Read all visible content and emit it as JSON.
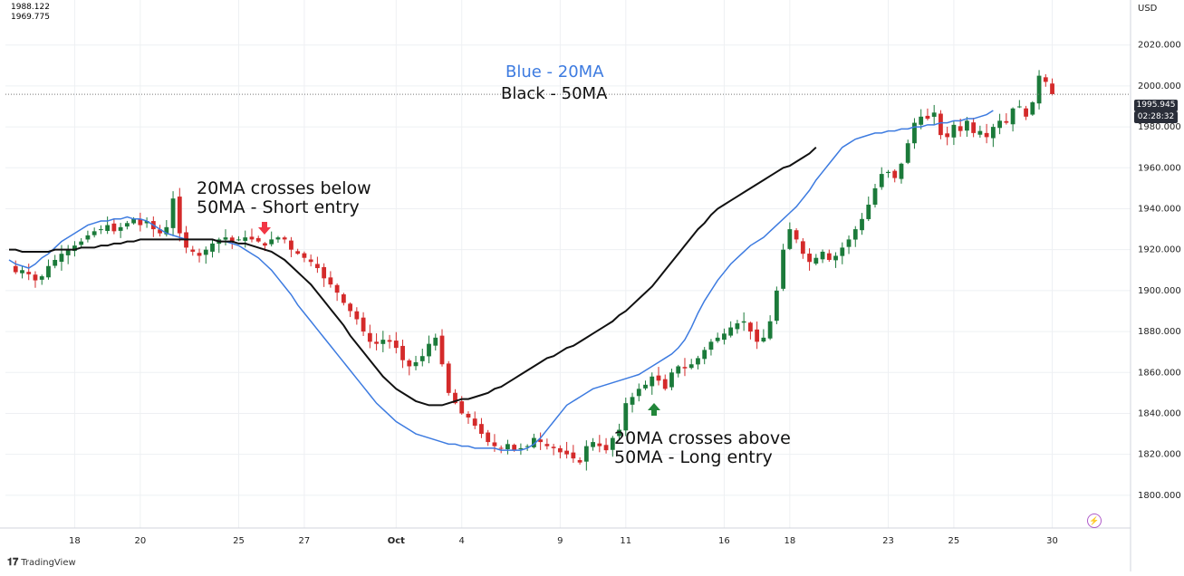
{
  "legend": {
    "value_a": "1988.122",
    "value_b": "1969.775"
  },
  "currency": "USD",
  "price_tag": {
    "price": "1995.945",
    "countdown": "02:28:32"
  },
  "watermark": "TradingView",
  "ma_labels": {
    "blue": "Blue - 20MA",
    "black": "Black - 50MA"
  },
  "annotations": {
    "short": "20MA crosses below\n50MA - Short entry",
    "long": "20MA crosses above\n50MA - Long entry"
  },
  "colors": {
    "up": "#1b7a3a",
    "down": "#d42a2a",
    "ma20": "#3d7be0",
    "ma50": "#111111",
    "grid": "#eef0f3",
    "short_arrow": "#f23645",
    "long_arrow": "#22863a",
    "price_tag_bg": "#2a2e39",
    "ma20_label": "#3d7be0"
  },
  "icons": {
    "short_marker": "arrow-down-icon",
    "long_marker": "arrow-up-icon",
    "alert": "lightning-icon"
  },
  "chart_data": {
    "type": "candlestick",
    "y_axis": {
      "ticks": [
        1800,
        1820,
        1840,
        1860,
        1880,
        1900,
        1920,
        1940,
        1960,
        1980,
        2000,
        2020
      ],
      "ylim": [
        1784,
        2042
      ],
      "currency": "USD"
    },
    "x_axis": {
      "tick_labels": [
        {
          "label": "18",
          "idx": 10
        },
        {
          "label": "20",
          "idx": 20
        },
        {
          "label": "25",
          "idx": 35
        },
        {
          "label": "27",
          "idx": 45
        },
        {
          "label": "Oct",
          "idx": 59
        },
        {
          "label": "4",
          "idx": 69
        },
        {
          "label": "9",
          "idx": 84
        },
        {
          "label": "11",
          "idx": 94
        },
        {
          "label": "16",
          "idx": 109
        },
        {
          "label": "18",
          "idx": 119
        },
        {
          "label": "23",
          "idx": 134
        },
        {
          "label": "25",
          "idx": 144
        },
        {
          "label": "30",
          "idx": 159
        }
      ]
    },
    "series": [
      {
        "name": "Blue - 20MA",
        "color": "#3d7be0",
        "values": [
          1915,
          1913,
          1912,
          1911,
          1913,
          1916,
          1918,
          1921,
          1924,
          1926,
          1928,
          1930,
          1932,
          1933,
          1934,
          1934,
          1935,
          1935,
          1936,
          1935,
          1935,
          1934,
          1932,
          1930,
          1928,
          1927,
          1926,
          1925,
          1925,
          1925,
          1925,
          1925,
          1924,
          1924,
          1923,
          1922,
          1920,
          1918,
          1916,
          1913,
          1910,
          1906,
          1902,
          1898,
          1893,
          1889,
          1885,
          1881,
          1877,
          1873,
          1869,
          1865,
          1861,
          1857,
          1853,
          1849,
          1845,
          1842,
          1839,
          1836,
          1834,
          1832,
          1830,
          1829,
          1828,
          1827,
          1826,
          1825,
          1825,
          1824,
          1824,
          1823,
          1823,
          1823,
          1823,
          1822,
          1822,
          1822,
          1822,
          1823,
          1825,
          1828,
          1832,
          1836,
          1840,
          1844,
          1846,
          1848,
          1850,
          1852,
          1853,
          1854,
          1855,
          1856,
          1857,
          1858,
          1859,
          1861,
          1863,
          1865,
          1867,
          1869,
          1872,
          1876,
          1882,
          1889,
          1895,
          1900,
          1905,
          1909,
          1913,
          1916,
          1919,
          1922,
          1924,
          1926,
          1929,
          1932,
          1935,
          1938,
          1941,
          1945,
          1949,
          1954,
          1958,
          1962,
          1966,
          1970,
          1972,
          1974,
          1975,
          1976,
          1977,
          1977,
          1978,
          1978,
          1979,
          1979,
          1980,
          1980,
          1981,
          1981,
          1982,
          1982,
          1983,
          1983,
          1984,
          1984,
          1985,
          1986,
          1988
        ]
      },
      {
        "name": "Black - 50MA",
        "color": "#111111",
        "values": [
          1920,
          1920,
          1919,
          1919,
          1919,
          1919,
          1919,
          1920,
          1920,
          1920,
          1920,
          1921,
          1921,
          1921,
          1922,
          1922,
          1923,
          1923,
          1924,
          1924,
          1925,
          1925,
          1925,
          1925,
          1925,
          1925,
          1925,
          1925,
          1925,
          1925,
          1925,
          1925,
          1924,
          1924,
          1924,
          1923,
          1923,
          1922,
          1921,
          1920,
          1919,
          1917,
          1915,
          1912,
          1909,
          1906,
          1903,
          1899,
          1895,
          1891,
          1887,
          1883,
          1878,
          1874,
          1870,
          1866,
          1862,
          1858,
          1855,
          1852,
          1850,
          1848,
          1846,
          1845,
          1844,
          1844,
          1844,
          1845,
          1846,
          1847,
          1847,
          1848,
          1849,
          1850,
          1852,
          1853,
          1855,
          1857,
          1859,
          1861,
          1863,
          1865,
          1867,
          1868,
          1870,
          1872,
          1873,
          1875,
          1877,
          1879,
          1881,
          1883,
          1885,
          1888,
          1890,
          1893,
          1896,
          1899,
          1902,
          1906,
          1910,
          1914,
          1918,
          1922,
          1926,
          1930,
          1933,
          1937,
          1940,
          1942,
          1944,
          1946,
          1948,
          1950,
          1952,
          1954,
          1956,
          1958,
          1960,
          1961,
          1963,
          1965,
          1967,
          1970
        ]
      }
    ],
    "ohlc": [],
    "note": "Candles generated from close path below",
    "close_path": [
      1912,
      1909,
      1910,
      1908,
      1905,
      1907,
      1912,
      1915,
      1918,
      1920,
      1922,
      1924,
      1927,
      1929,
      1930,
      1932,
      1929,
      1931,
      1933,
      1935,
      1932,
      1934,
      1930,
      1928,
      1931,
      1945,
      1928,
      1921,
      1919,
      1917,
      1920,
      1923,
      1925,
      1926,
      1924,
      1925,
      1926,
      1925,
      1924,
      1922,
      1925,
      1926,
      1925,
      1920,
      1918,
      1916,
      1914,
      1911,
      1906,
      1903,
      1899,
      1894,
      1890,
      1886,
      1880,
      1875,
      1874,
      1876,
      1875,
      1872,
      1866,
      1863,
      1865,
      1868,
      1874,
      1877,
      1864,
      1850,
      1845,
      1840,
      1838,
      1834,
      1830,
      1826,
      1824,
      1823,
      1825,
      1822,
      1823,
      1824,
      1828,
      1826,
      1824,
      1823,
      1821,
      1820,
      1818,
      1816,
      1824,
      1826,
      1824,
      1822,
      1828,
      1832,
      1845,
      1848,
      1852,
      1854,
      1858,
      1856,
      1852,
      1860,
      1863,
      1862,
      1864,
      1867,
      1871,
      1875,
      1877,
      1879,
      1882,
      1884,
      1885,
      1880,
      1875,
      1877,
      1885,
      1900,
      1920,
      1930,
      1925,
      1918,
      1914,
      1916,
      1919,
      1915,
      1917,
      1921,
      1925,
      1930,
      1935,
      1942,
      1950,
      1957,
      1958,
      1955,
      1962,
      1972,
      1982,
      1985,
      1984,
      1987,
      1976,
      1975,
      1981,
      1978,
      1983,
      1977,
      1978,
      1975,
      1980,
      1983,
      1982,
      1989,
      1990,
      1985,
      1992,
      2005,
      2002,
      1996
    ]
  }
}
